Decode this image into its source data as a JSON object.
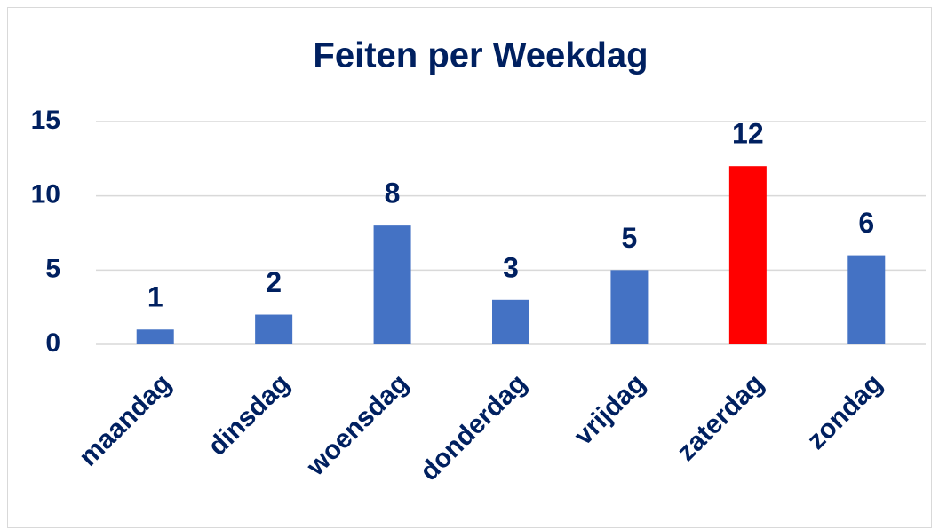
{
  "chart_data": {
    "type": "bar",
    "title": "Feiten per Weekdag",
    "categories": [
      "maandag",
      "dinsdag",
      "woensdag",
      "donderdag",
      "vrijdag",
      "zaterdag",
      "zondag"
    ],
    "values": [
      1,
      2,
      8,
      3,
      5,
      12,
      6
    ],
    "colors": [
      "#4472c4",
      "#4472c4",
      "#4472c4",
      "#4472c4",
      "#4472c4",
      "#ff0000",
      "#4472c4"
    ],
    "ylim": [
      0,
      15
    ],
    "yticks": [
      0,
      5,
      10,
      15
    ],
    "grid": true
  }
}
